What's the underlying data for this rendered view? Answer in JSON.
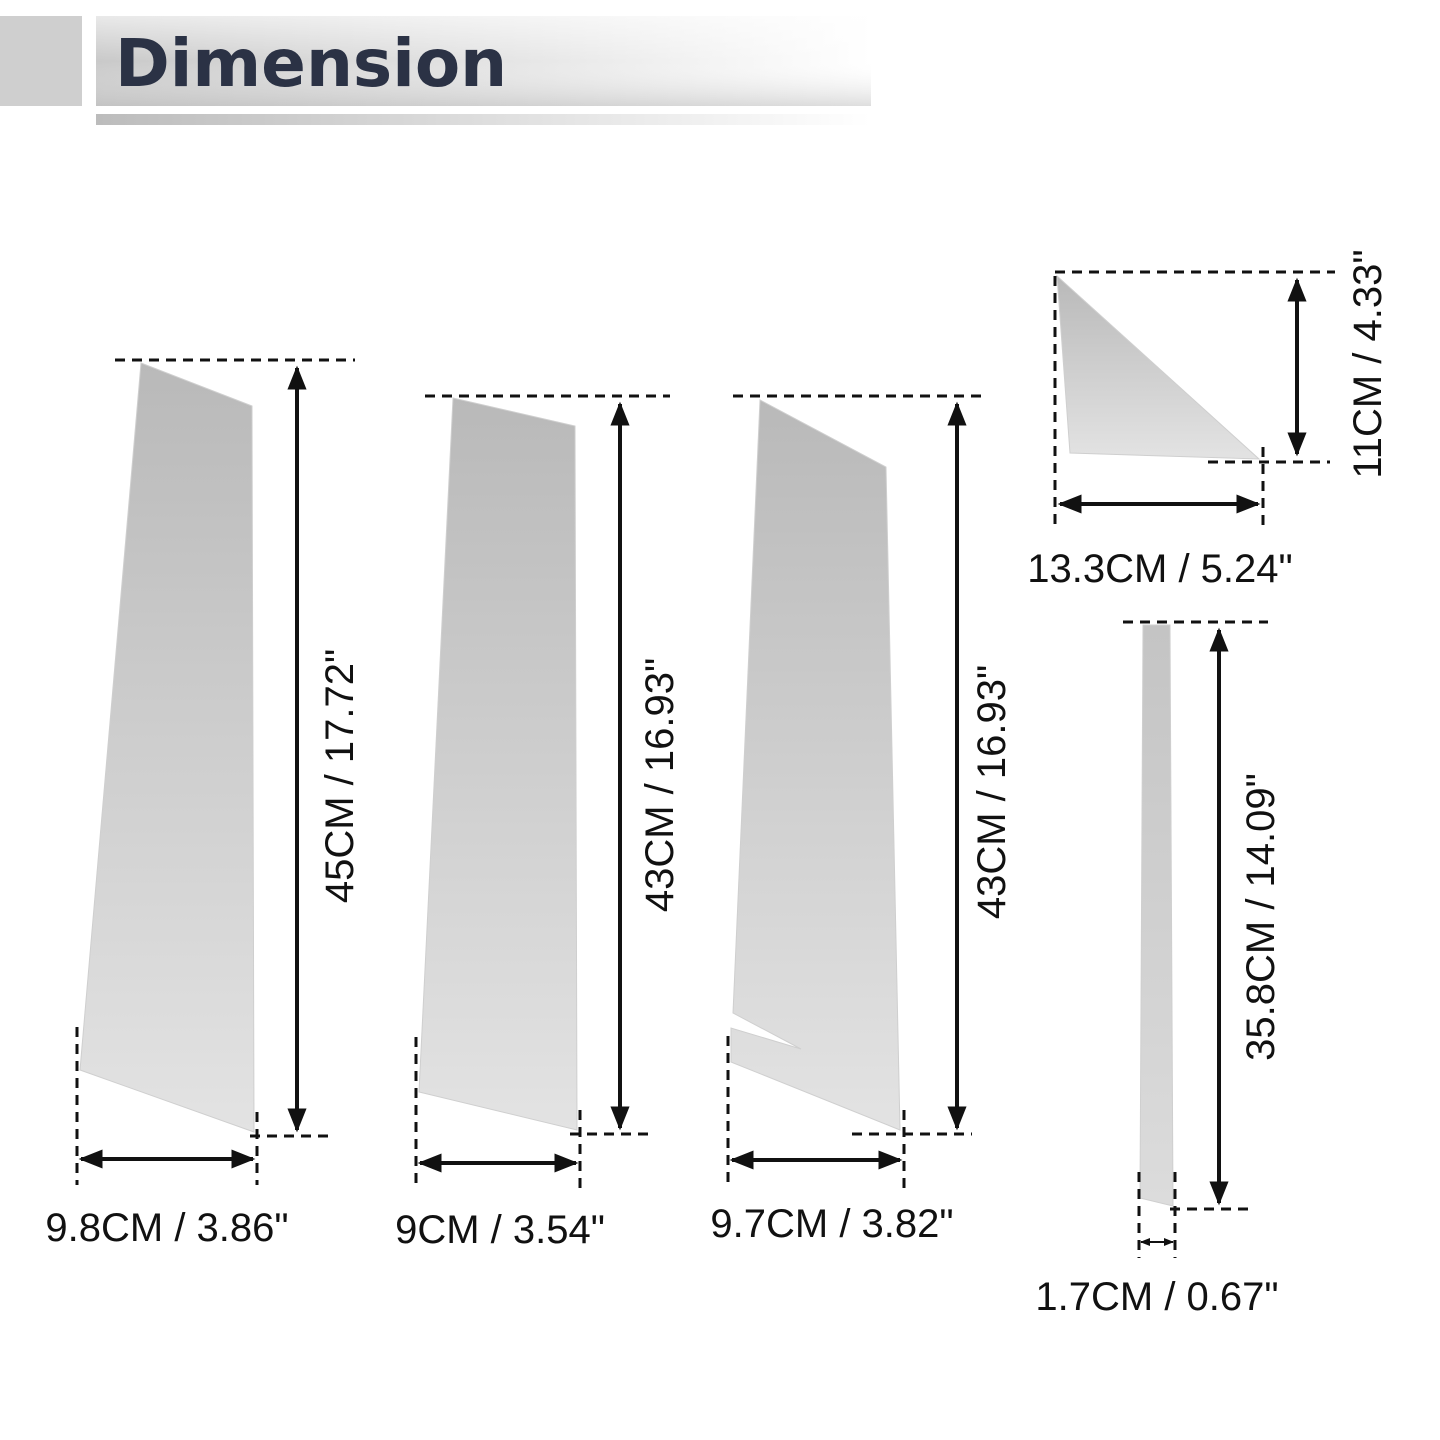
{
  "header": {
    "title": "Dimension"
  },
  "colors": {
    "title_text": "#2b3245",
    "panel_light": "#e3e3e3",
    "panel_dark": "#b9b9b9",
    "line": "#111111"
  },
  "panels": [
    {
      "name": "b-pillar-1",
      "height_label": "45CM / 17.72\"",
      "width_label": "9.8CM / 3.86\""
    },
    {
      "name": "b-pillar-2",
      "height_label": "43CM / 16.93\"",
      "width_label": "9CM / 3.54\""
    },
    {
      "name": "b-pillar-3",
      "height_label": "43CM / 16.93\"",
      "width_label": "9.7CM / 3.82\""
    },
    {
      "name": "triangle-panel",
      "height_label": "11CM / 4.33\"",
      "width_label": "13.3CM / 5.24\""
    },
    {
      "name": "strip-panel",
      "height_label": "35.8CM / 14.09\"",
      "width_label": "1.7CM / 0.67\""
    }
  ]
}
